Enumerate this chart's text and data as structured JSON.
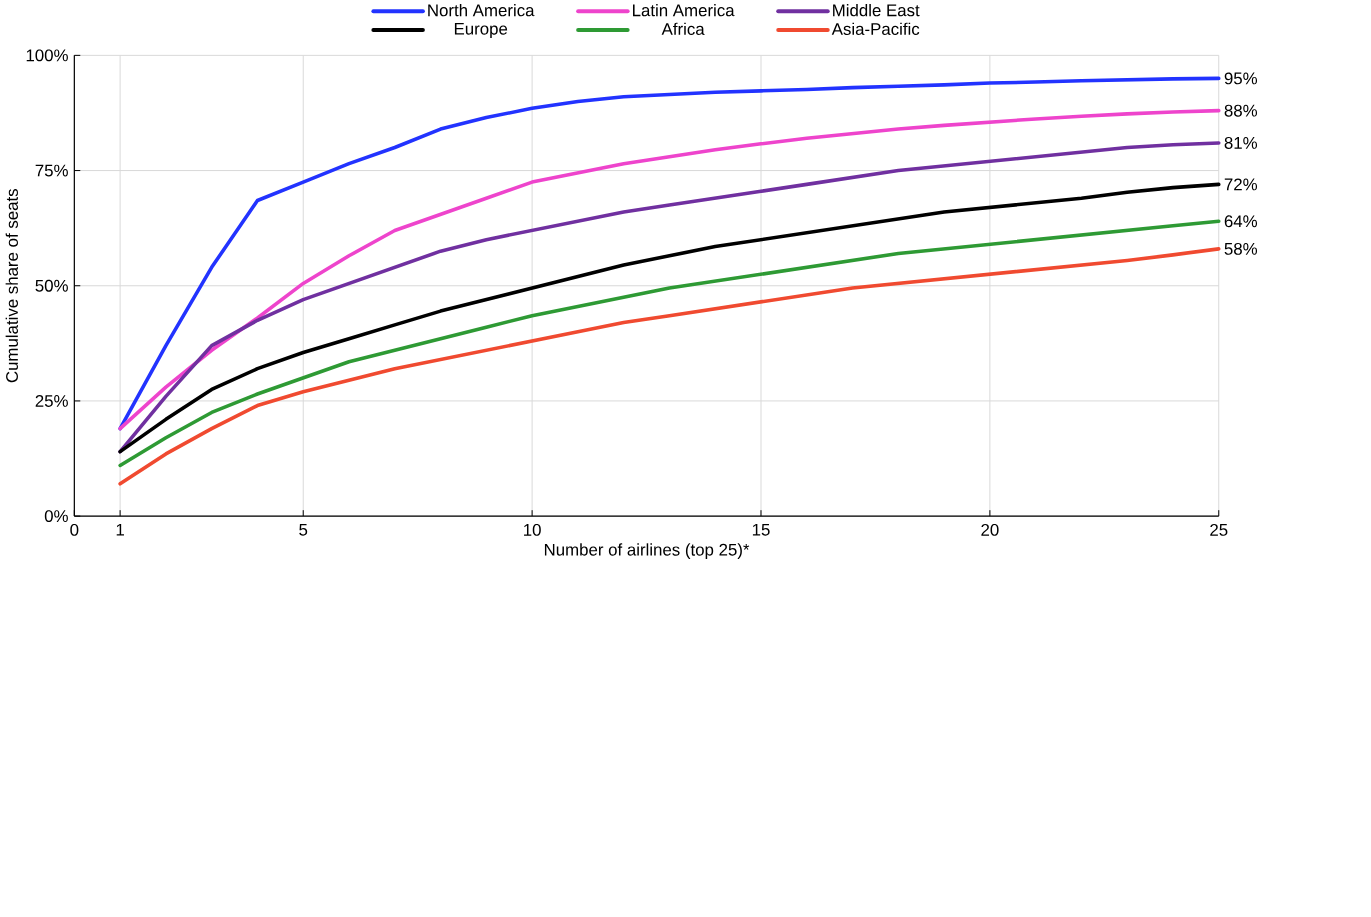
{
  "chart_data": {
    "type": "line",
    "xlabel": "Number of airlines (top 25)*",
    "ylabel": "Cumulative share of seats",
    "x": [
      1,
      2,
      3,
      4,
      5,
      6,
      7,
      8,
      9,
      10,
      11,
      12,
      13,
      14,
      15,
      16,
      17,
      18,
      19,
      20,
      21,
      22,
      23,
      24,
      25
    ],
    "xlim": [
      0,
      25
    ],
    "xticks": [
      0,
      1,
      5,
      10,
      15,
      20,
      25
    ],
    "ylim": [
      0,
      100
    ],
    "yticks": [
      {
        "value": 0,
        "label": "0%"
      },
      {
        "value": 25,
        "label": "25%"
      },
      {
        "value": 50,
        "label": "50%"
      },
      {
        "value": 75,
        "label": "75%"
      },
      {
        "value": 100,
        "label": "100%"
      }
    ],
    "grid": true,
    "legend": "top",
    "line_style": "solid",
    "marker": "none",
    "series": [
      {
        "name": "North America",
        "color": "#2233ff",
        "values": [
          19,
          37,
          54,
          68.5,
          72.5,
          76.5,
          80,
          84,
          86.5,
          88.5,
          90,
          91,
          91.5,
          92,
          92.3,
          92.6,
          93,
          93.3,
          93.6,
          94,
          94.2,
          94.5,
          94.7,
          94.9,
          95
        ],
        "value_labels": [
          null,
          null,
          null,
          null,
          null,
          null,
          null,
          null,
          null,
          null,
          null,
          null,
          null,
          null,
          null,
          null,
          null,
          null,
          null,
          null,
          null,
          null,
          null,
          null,
          "95%"
        ]
      },
      {
        "name": "Latin America",
        "color": "#ee44cc",
        "values": [
          19,
          28,
          36,
          43,
          50.5,
          56.5,
          62,
          65.5,
          69,
          72.5,
          74.5,
          76.5,
          78,
          79.5,
          80.8,
          82,
          83,
          84,
          84.8,
          85.5,
          86.2,
          86.8,
          87.3,
          87.7,
          88
        ],
        "value_labels": [
          null,
          null,
          null,
          null,
          null,
          null,
          null,
          null,
          null,
          null,
          null,
          null,
          null,
          null,
          null,
          null,
          null,
          null,
          null,
          null,
          null,
          null,
          null,
          null,
          "88%"
        ]
      },
      {
        "name": "Middle East",
        "color": "#7030a0",
        "values": [
          14,
          26,
          37,
          42.5,
          47,
          50.5,
          54,
          57.5,
          60,
          62,
          64,
          66,
          67.5,
          69,
          70.5,
          72,
          73.5,
          75,
          76,
          77,
          78,
          79,
          80,
          80.6,
          81
        ],
        "value_labels": [
          null,
          null,
          null,
          null,
          null,
          null,
          null,
          null,
          null,
          null,
          null,
          null,
          null,
          null,
          null,
          null,
          null,
          null,
          null,
          null,
          null,
          null,
          null,
          null,
          "81%"
        ]
      },
      {
        "name": "Europe",
        "color": "#000000",
        "values": [
          14,
          21,
          27.5,
          32,
          35.5,
          38.5,
          41.5,
          44.5,
          47,
          49.5,
          52,
          54.5,
          56.5,
          58.5,
          60,
          61.5,
          63,
          64.5,
          66,
          67,
          68,
          69,
          70.3,
          71.3,
          72
        ],
        "value_labels": [
          null,
          null,
          null,
          null,
          null,
          null,
          null,
          null,
          null,
          null,
          null,
          null,
          null,
          null,
          null,
          null,
          null,
          null,
          null,
          null,
          null,
          null,
          null,
          null,
          "72%"
        ]
      },
      {
        "name": "Africa",
        "color": "#2e9a34",
        "values": [
          11,
          17,
          22.5,
          26.5,
          30,
          33.5,
          36,
          38.5,
          41,
          43.5,
          45.5,
          47.5,
          49.5,
          51,
          52.5,
          54,
          55.5,
          57,
          58,
          59,
          60,
          61,
          62,
          63,
          64
        ],
        "value_labels": [
          null,
          null,
          null,
          null,
          null,
          null,
          null,
          null,
          null,
          null,
          null,
          null,
          null,
          null,
          null,
          null,
          null,
          null,
          null,
          null,
          null,
          null,
          null,
          null,
          "64%"
        ]
      },
      {
        "name": "Asia-Pacific",
        "color": "#f04a30",
        "values": [
          7,
          13.5,
          19,
          24,
          27,
          29.5,
          32,
          34,
          36,
          38,
          40,
          42,
          43.5,
          45,
          46.5,
          48,
          49.5,
          50.5,
          51.5,
          52.5,
          53.5,
          54.5,
          55.5,
          56.7,
          58
        ],
        "value_labels": [
          null,
          null,
          null,
          null,
          null,
          null,
          null,
          null,
          null,
          null,
          null,
          null,
          null,
          null,
          null,
          null,
          null,
          null,
          null,
          null,
          null,
          null,
          null,
          null,
          "58%"
        ]
      }
    ]
  }
}
